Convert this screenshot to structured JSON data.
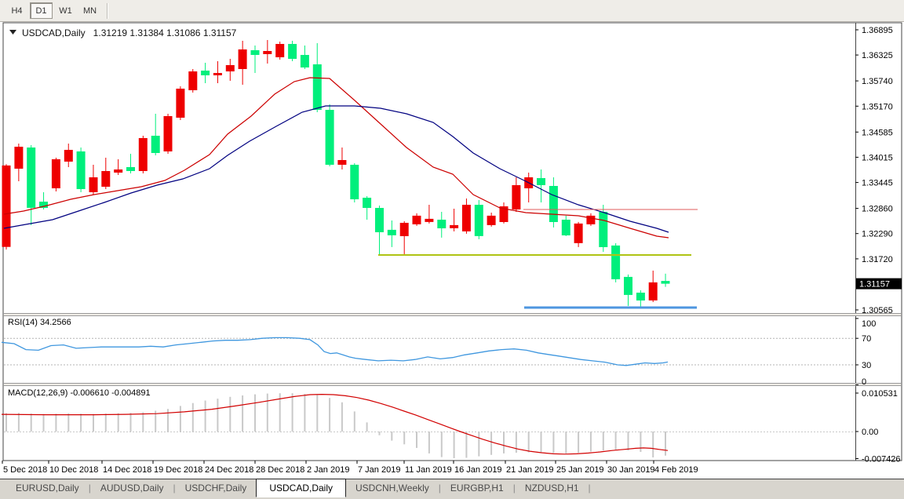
{
  "toolbar": {
    "buttons": [
      {
        "label": "H4",
        "active": false
      },
      {
        "label": "D1",
        "active": true
      },
      {
        "label": "W1",
        "active": false
      },
      {
        "label": "MN",
        "active": false
      }
    ]
  },
  "chart": {
    "symbol_title": "USDCAD,Daily",
    "quote_ohlc": "1.31219 1.31384 1.31086 1.31157",
    "current_price_label": "1.31157",
    "colors": {
      "bull": "#EE0000",
      "bear": "#00EF7C",
      "ma_fast": "#CC0000",
      "ma_slow": "#000080",
      "rsi_line": "#3F97DF",
      "macd_signal": "#D20000",
      "macd_histogram": "#C9C9C9",
      "level_red": "#E25B5B",
      "level_olive": "#AFC414",
      "level_blue": "#4E96E0",
      "badge_bg": "#000000",
      "badge_text": "#FFFFFF",
      "frame": "#444444"
    }
  },
  "rsi": {
    "label": "RSI(14)",
    "value": "34.2566"
  },
  "macd": {
    "label": "MACD(12,26,9)",
    "values": "-0.006610 -0.004891"
  },
  "tabs": {
    "items": [
      {
        "label": "EURUSD,Daily",
        "active": false
      },
      {
        "label": "AUDUSD,Daily",
        "active": false
      },
      {
        "label": "USDCHF,Daily",
        "active": false
      },
      {
        "label": "USDCAD,Daily",
        "active": true
      },
      {
        "label": "USDCNH,Weekly",
        "active": false
      },
      {
        "label": "EURGBP,H1",
        "active": false
      },
      {
        "label": "NZDUSD,H1",
        "active": false
      }
    ]
  },
  "chart_data": [
    {
      "type": "candlestick",
      "title": "USDCAD,Daily",
      "timeframe": "D1",
      "ohlc_display": [
        1.31219,
        1.31384,
        1.31086,
        1.31157
      ],
      "y_axis_ticks": [
        1.36895,
        1.36325,
        1.3574,
        1.3517,
        1.34585,
        1.34015,
        1.33445,
        1.3286,
        1.3229,
        1.3172,
        1.30565
      ],
      "current_price": 1.31157,
      "x_labels": [
        [
          "5 Dec 2018",
          3
        ],
        [
          "10 Dec 2018",
          62
        ],
        [
          "14 Dec 2018",
          130
        ],
        [
          "19 Dec 2018",
          195
        ],
        [
          "24 Dec 2018",
          260
        ],
        [
          "28 Dec 2018",
          325
        ],
        [
          "2 Jan 2019",
          390
        ],
        [
          "7 Jan 2019",
          455
        ],
        [
          "11 Jan 2019",
          515
        ],
        [
          "16 Jan 2019",
          578
        ],
        [
          "21 Jan 2019",
          644
        ],
        [
          "25 Jan 2019",
          708
        ],
        [
          "30 Jan 2019",
          773
        ],
        [
          "4 Feb 2019",
          833
        ]
      ],
      "candles": [
        [
          1.3199,
          1.3386,
          1.3193,
          1.3383
        ],
        [
          1.33757,
          1.34324,
          1.33473,
          1.34253
        ],
        [
          1.34235,
          1.34289,
          1.32481,
          1.32871
        ],
        [
          1.33012,
          1.33225,
          1.32835,
          1.32871
        ],
        [
          1.33314,
          1.34005,
          1.33243,
          1.3397
        ],
        [
          1.33916,
          1.34324,
          1.33792,
          1.34182
        ],
        [
          1.34147,
          1.34235,
          1.33225,
          1.33296
        ],
        [
          1.33225,
          1.33845,
          1.33172,
          1.33562
        ],
        [
          1.33349,
          1.34005,
          1.33296,
          1.33704
        ],
        [
          1.33668,
          1.3397,
          1.33615,
          1.33739
        ],
        [
          1.33792,
          1.34093,
          1.3365,
          1.33704
        ],
        [
          1.33704,
          1.34501,
          1.3365,
          1.34448
        ],
        [
          1.34501,
          1.34998,
          1.34058,
          1.34111
        ],
        [
          1.34147,
          1.34998,
          1.34093,
          1.34945
        ],
        [
          1.34909,
          1.35618,
          1.34856,
          1.35565
        ],
        [
          1.3553,
          1.36009,
          1.35477,
          1.35955
        ],
        [
          1.35973,
          1.3615,
          1.35689,
          1.35867
        ],
        [
          1.35867,
          1.36186,
          1.35689,
          1.3592
        ],
        [
          1.35955,
          1.36239,
          1.35743,
          1.36097
        ],
        [
          1.36009,
          1.36647,
          1.35654,
          1.36452
        ],
        [
          1.36434,
          1.3654,
          1.3592,
          1.36328
        ],
        [
          1.36345,
          1.36665,
          1.36133,
          1.36416
        ],
        [
          1.36274,
          1.36629,
          1.36221,
          1.36576
        ],
        [
          1.36576,
          1.36647,
          1.36186,
          1.36239
        ],
        [
          1.36328,
          1.3654,
          1.36009,
          1.36044
        ],
        [
          1.36115,
          1.36594,
          1.35033,
          1.35087
        ],
        [
          1.35087,
          1.35211,
          1.3381,
          1.33845
        ],
        [
          1.33845,
          1.34235,
          1.33739,
          1.33952
        ],
        [
          1.33845,
          1.33881,
          1.32995,
          1.33065
        ],
        [
          1.33101,
          1.33136,
          1.32605,
          1.32871
        ],
        [
          1.32871,
          1.32924,
          1.31807,
          1.32322
        ],
        [
          1.32375,
          1.32587,
          1.31985,
          1.32251
        ],
        [
          1.32233,
          1.3257,
          1.31807,
          1.32534
        ],
        [
          1.32499,
          1.32747,
          1.32464,
          1.32694
        ],
        [
          1.32552,
          1.32941,
          1.32517,
          1.32623
        ],
        [
          1.32605,
          1.32782,
          1.32198,
          1.3241
        ],
        [
          1.3241,
          1.32853,
          1.3234,
          1.32481
        ],
        [
          1.3234,
          1.33083,
          1.32286,
          1.32941
        ],
        [
          1.32941,
          1.33048,
          1.32162,
          1.32233
        ],
        [
          1.32481,
          1.32764,
          1.32446,
          1.32694
        ],
        [
          1.32552,
          1.32995,
          1.32517,
          1.32906
        ],
        [
          1.32835,
          1.33562,
          1.32782,
          1.33384
        ],
        [
          1.33314,
          1.33668,
          1.32995,
          1.33562
        ],
        [
          1.33544,
          1.33739,
          1.32995,
          1.33384
        ],
        [
          1.33367,
          1.33562,
          1.32428,
          1.32552
        ],
        [
          1.32605,
          1.32694,
          1.32233,
          1.32251
        ],
        [
          1.32073,
          1.32552,
          1.31985,
          1.32517
        ],
        [
          1.32499,
          1.32747,
          1.32464,
          1.32694
        ],
        [
          1.32782,
          1.32941,
          1.31878,
          1.31985
        ],
        [
          1.3202,
          1.32073,
          1.31187,
          1.31258
        ],
        [
          1.31311,
          1.31364,
          1.30655,
          1.30903
        ],
        [
          1.30956,
          1.31009,
          1.30637,
          1.30779
        ],
        [
          1.30779,
          1.31453,
          1.30743,
          1.31187
        ],
        [
          1.31219,
          1.31384,
          1.31086,
          1.31157
        ]
      ],
      "ma_red": [
        [
          5,
          1.32728
        ],
        [
          30,
          1.32799
        ],
        [
          60,
          1.32923
        ],
        [
          90,
          1.33065
        ],
        [
          120,
          1.33171
        ],
        [
          150,
          1.3326
        ],
        [
          180,
          1.33349
        ],
        [
          210,
          1.33491
        ],
        [
          235,
          1.33721
        ],
        [
          267,
          1.34076
        ],
        [
          290,
          1.34537
        ],
        [
          320,
          1.34945
        ],
        [
          350,
          1.35441
        ],
        [
          375,
          1.35725
        ],
        [
          395,
          1.35813
        ],
        [
          420,
          1.35796
        ],
        [
          452,
          1.35299
        ],
        [
          485,
          1.34767
        ],
        [
          518,
          1.34235
        ],
        [
          552,
          1.33792
        ],
        [
          577,
          1.33633
        ],
        [
          603,
          1.33171
        ],
        [
          637,
          1.3287
        ],
        [
          670,
          1.32764
        ],
        [
          703,
          1.32728
        ],
        [
          737,
          1.32693
        ],
        [
          770,
          1.32587
        ],
        [
          803,
          1.3241
        ],
        [
          837,
          1.32232
        ],
        [
          852,
          1.32197
        ]
      ],
      "ma_navy": [
        [
          5,
          1.32409
        ],
        [
          33,
          1.32498
        ],
        [
          67,
          1.32604
        ],
        [
          100,
          1.32799
        ],
        [
          133,
          1.32994
        ],
        [
          167,
          1.33207
        ],
        [
          200,
          1.33384
        ],
        [
          233,
          1.33526
        ],
        [
          267,
          1.33757
        ],
        [
          290,
          1.34058
        ],
        [
          318,
          1.34377
        ],
        [
          352,
          1.34714
        ],
        [
          385,
          1.35033
        ],
        [
          415,
          1.35175
        ],
        [
          452,
          1.35175
        ],
        [
          485,
          1.35122
        ],
        [
          518,
          1.34998
        ],
        [
          552,
          1.34803
        ],
        [
          577,
          1.34484
        ],
        [
          603,
          1.34111
        ],
        [
          637,
          1.33757
        ],
        [
          670,
          1.33473
        ],
        [
          703,
          1.33171
        ],
        [
          737,
          1.32941
        ],
        [
          770,
          1.32764
        ],
        [
          803,
          1.32569
        ],
        [
          837,
          1.3241
        ],
        [
          852,
          1.32321
        ]
      ],
      "hlines": [
        {
          "name": "resistance-red",
          "price": 1.32835,
          "x1": 667,
          "x2": 889,
          "color": "#E25B5B",
          "width": 1
        },
        {
          "name": "support-olive",
          "price": 1.31807,
          "x1": 482,
          "x2": 881,
          "color": "#AFC414",
          "width": 2
        },
        {
          "name": "support-blue",
          "price": 1.30619,
          "x1": 668,
          "x2": 888,
          "color": "#4E96E0",
          "width": 3
        }
      ]
    },
    {
      "type": "line",
      "name": "RSI(14)",
      "current_value": 34.2566,
      "levels": [
        100,
        70,
        30,
        0
      ],
      "dashed_levels": [
        70,
        30
      ],
      "ylim": [
        0,
        100
      ],
      "points": [
        [
          2,
          64
        ],
        [
          18,
          62
        ],
        [
          33,
          53
        ],
        [
          49,
          52
        ],
        [
          65,
          59
        ],
        [
          81,
          60
        ],
        [
          97,
          55
        ],
        [
          113,
          56
        ],
        [
          129,
          57
        ],
        [
          145,
          57
        ],
        [
          161,
          57
        ],
        [
          177,
          57
        ],
        [
          192,
          58
        ],
        [
          208,
          57
        ],
        [
          224,
          60
        ],
        [
          240,
          62
        ],
        [
          256,
          64
        ],
        [
          271,
          66
        ],
        [
          287,
          67
        ],
        [
          303,
          67
        ],
        [
          319,
          68
        ],
        [
          334,
          70
        ],
        [
          350,
          71
        ],
        [
          366,
          71
        ],
        [
          382,
          70
        ],
        [
          395,
          68
        ],
        [
          405,
          60
        ],
        [
          413,
          50
        ],
        [
          421,
          47
        ],
        [
          429,
          48
        ],
        [
          437,
          45
        ],
        [
          445,
          42
        ],
        [
          453,
          40
        ],
        [
          466,
          38
        ],
        [
          482,
          36
        ],
        [
          498,
          37
        ],
        [
          514,
          36
        ],
        [
          529,
          38
        ],
        [
          545,
          42
        ],
        [
          561,
          39
        ],
        [
          577,
          41
        ],
        [
          592,
          45
        ],
        [
          608,
          48
        ],
        [
          623,
          51
        ],
        [
          639,
          53
        ],
        [
          655,
          54
        ],
        [
          671,
          52
        ],
        [
          686,
          48
        ],
        [
          702,
          45
        ],
        [
          708,
          44
        ],
        [
          724,
          41
        ],
        [
          740,
          38
        ],
        [
          755,
          36
        ],
        [
          771,
          34
        ],
        [
          787,
          30
        ],
        [
          798,
          29
        ],
        [
          810,
          31
        ],
        [
          822,
          33
        ],
        [
          834,
          32
        ],
        [
          845,
          33
        ],
        [
          851,
          34.3
        ]
      ]
    },
    {
      "type": "macd",
      "name": "MACD(12,26,9)",
      "current_values": [
        -0.00661,
        -0.004891
      ],
      "y_ticks": [
        0.010531,
        0.0,
        -0.007426
      ],
      "histogram_e4": [
        50,
        51,
        49,
        48,
        49,
        50,
        49,
        48,
        49,
        50,
        51,
        53,
        57,
        62,
        70,
        78,
        85,
        90,
        95,
        99,
        102,
        104,
        105,
        105,
        103,
        100,
        92,
        80,
        55,
        25,
        -10,
        -25,
        -35,
        -45,
        -60,
        -70,
        -73,
        -72,
        -68,
        -64,
        -60,
        -58,
        -57,
        -58,
        -59,
        -60,
        -58,
        -55,
        -52,
        -50,
        -52,
        -56,
        -71,
        -66
      ],
      "signal_e4": [
        [
          2,
          47
        ],
        [
          60,
          46
        ],
        [
          120,
          46
        ],
        [
          160,
          47
        ],
        [
          200,
          49
        ],
        [
          235,
          54
        ],
        [
          270,
          61
        ],
        [
          300,
          70
        ],
        [
          330,
          80
        ],
        [
          355,
          89
        ],
        [
          375,
          96
        ],
        [
          395,
          101
        ],
        [
          410,
          102
        ],
        [
          425,
          101
        ],
        [
          440,
          98
        ],
        [
          455,
          93
        ],
        [
          470,
          86
        ],
        [
          485,
          77
        ],
        [
          500,
          67
        ],
        [
          515,
          56
        ],
        [
          530,
          45
        ],
        [
          545,
          33
        ],
        [
          560,
          21
        ],
        [
          575,
          9
        ],
        [
          585,
          1
        ],
        [
          600,
          -10
        ],
        [
          615,
          -21
        ],
        [
          630,
          -31
        ],
        [
          645,
          -40
        ],
        [
          660,
          -48
        ],
        [
          675,
          -54
        ],
        [
          690,
          -58
        ],
        [
          705,
          -61
        ],
        [
          720,
          -62
        ],
        [
          735,
          -61
        ],
        [
          750,
          -59
        ],
        [
          765,
          -56
        ],
        [
          780,
          -52
        ],
        [
          795,
          -49
        ],
        [
          810,
          -46
        ],
        [
          820,
          -45
        ],
        [
          830,
          -46
        ],
        [
          840,
          -49
        ],
        [
          851,
          -52
        ]
      ]
    }
  ]
}
